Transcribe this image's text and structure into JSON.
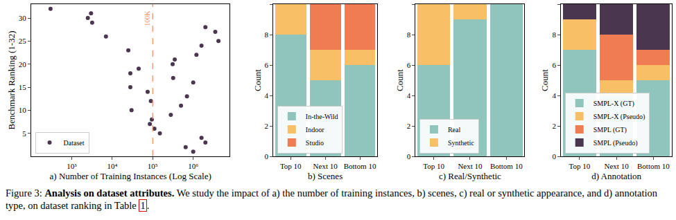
{
  "chart_data": [
    {
      "type": "scatter",
      "x_label": "a) Number of Training Instances (Log Scale)",
      "y_label": "Benchmark Ranking (1-32)",
      "log": "x",
      "x": [
        300,
        3000,
        2500,
        3200,
        2000000,
        3500000,
        7000,
        4200000,
        1600000,
        25000,
        1200000,
        350000,
        310000,
        45000,
        28000,
        320000,
        1000000,
        28000,
        75000,
        700000,
        90000,
        500000,
        30000,
        280000,
        95000,
        85000,
        110000,
        150000,
        1600000,
        2000000,
        650000,
        1000000
      ],
      "series": [
        {
          "name": "Dataset",
          "color": "#4b3650",
          "marker": "circle",
          "values": [
            32,
            31,
            30,
            29,
            28,
            27,
            26,
            25,
            24,
            23,
            22,
            21,
            20,
            19,
            18,
            17,
            16,
            15,
            14,
            13,
            12,
            11,
            10,
            9,
            8,
            7,
            6,
            5,
            4,
            3,
            2,
            1
          ]
        }
      ],
      "xlim": [
        100,
        8000000
      ],
      "xticks": [
        {
          "value": 1000,
          "label": "10³"
        },
        {
          "value": 10000,
          "label": "10⁴"
        },
        {
          "value": 100000,
          "label": "10⁵"
        },
        {
          "value": 1000000,
          "label": "10⁶"
        }
      ],
      "ylim": [
        0,
        33
      ],
      "yticks": [
        5,
        10,
        15,
        20,
        25,
        30
      ],
      "annotations": [
        {
          "x": 100000,
          "text": "100K",
          "color": "#f08a5d",
          "line_style": "dashed"
        }
      ],
      "grid": false,
      "legend": "lower left"
    },
    {
      "type": "bar",
      "stacked": true,
      "x_label": "b) Scenes",
      "y_label": "Count",
      "categories": [
        "Top 10",
        "Next 10",
        "Bottom 10"
      ],
      "series": [
        {
          "name": "In-the-Wild",
          "color": "#8fc5bc",
          "values": [
            8,
            5,
            6
          ]
        },
        {
          "name": "Indoor",
          "color": "#f8bf66",
          "values": [
            2,
            2,
            1
          ]
        },
        {
          "name": "Studio",
          "color": "#ef7c52",
          "values": [
            0,
            3,
            3
          ]
        }
      ],
      "ylim": [
        0,
        10
      ],
      "yticks": [
        0,
        2,
        4,
        6,
        8,
        10
      ],
      "grid": false,
      "legend": "lower left"
    },
    {
      "type": "bar",
      "stacked": true,
      "x_label": "c) Real/Synthetic",
      "y_label": "Count",
      "categories": [
        "Top 10",
        "Next 10",
        "Bottom 10"
      ],
      "series": [
        {
          "name": "Real",
          "color": "#8fc5bc",
          "values": [
            6,
            9,
            10
          ]
        },
        {
          "name": "Synthetic",
          "color": "#f8bf66",
          "values": [
            4,
            1,
            0
          ]
        }
      ],
      "ylim": [
        0,
        10
      ],
      "yticks": [
        0,
        2,
        4,
        6,
        8,
        10
      ],
      "grid": false,
      "legend": "lower left"
    },
    {
      "type": "bar",
      "stacked": true,
      "x_label": "d) Annotation",
      "y_label": "Count",
      "categories": [
        "Top 10",
        "Next 10",
        "Bottom 10"
      ],
      "series": [
        {
          "name": "SMPL-X (GT)",
          "color": "#8fc5bc",
          "values": [
            7,
            4,
            5
          ]
        },
        {
          "name": "SMPL-X (Pseudo)",
          "color": "#f8bf66",
          "values": [
            2,
            1,
            1
          ]
        },
        {
          "name": "SMPL (GT)",
          "color": "#ef7c52",
          "values": [
            0,
            3,
            1
          ]
        },
        {
          "name": "SMPL (Pseudo)",
          "color": "#4b3650",
          "values": [
            1,
            2,
            3
          ]
        }
      ],
      "ylim": [
        0,
        10
      ],
      "yticks": [
        0,
        2,
        4,
        6,
        8,
        10
      ],
      "grid": false,
      "legend": "lower left"
    }
  ],
  "caption": {
    "label": "Figure 3:",
    "title": "Analysis on dataset attributes.",
    "text": "We study the impact of a) the number of training instances, b) scenes, c) real or synthetic appearance, and d) annotation type, on dataset ranking in Table",
    "ref": "1",
    "end": "."
  }
}
